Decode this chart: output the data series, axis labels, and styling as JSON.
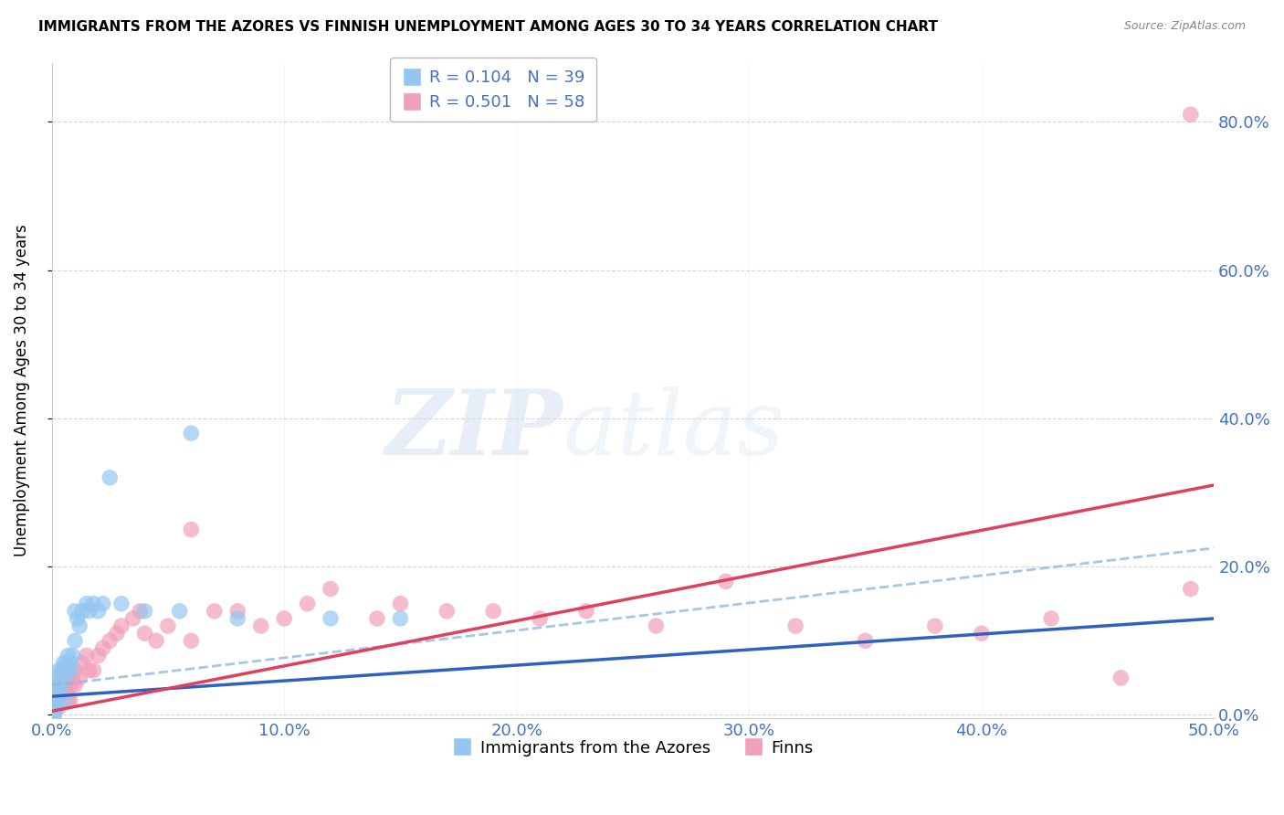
{
  "title": "IMMIGRANTS FROM THE AZORES VS FINNISH UNEMPLOYMENT AMONG AGES 30 TO 34 YEARS CORRELATION CHART",
  "source": "Source: ZipAtlas.com",
  "ylabel": "Unemployment Among Ages 30 to 34 years",
  "xlim": [
    0.0,
    0.5
  ],
  "ylim": [
    -0.005,
    0.88
  ],
  "color_blue": "#93C6F0",
  "color_pink": "#F0A0B8",
  "color_blue_dark": "#3060C0",
  "color_pink_dark": "#E04060",
  "color_blue_dashed": "#90B8E0",
  "color_blue_text": "#4472C4",
  "azores_x": [
    0.001,
    0.001,
    0.001,
    0.002,
    0.002,
    0.002,
    0.003,
    0.003,
    0.003,
    0.004,
    0.004,
    0.005,
    0.005,
    0.005,
    0.006,
    0.006,
    0.007,
    0.008,
    0.008,
    0.009,
    0.01,
    0.01,
    0.011,
    0.012,
    0.013,
    0.015,
    0.016,
    0.018,
    0.02,
    0.022,
    0.025,
    0.03,
    0.04,
    0.055,
    0.06,
    0.08,
    0.12,
    0.15,
    0.001
  ],
  "azores_y": [
    0.005,
    0.01,
    0.0,
    0.02,
    0.03,
    0.01,
    0.03,
    0.05,
    0.06,
    0.04,
    0.06,
    0.02,
    0.05,
    0.07,
    0.06,
    0.07,
    0.08,
    0.07,
    0.06,
    0.08,
    0.1,
    0.14,
    0.13,
    0.12,
    0.14,
    0.15,
    0.14,
    0.15,
    0.14,
    0.15,
    0.32,
    0.15,
    0.14,
    0.14,
    0.38,
    0.13,
    0.13,
    0.13,
    0.0
  ],
  "finns_x": [
    0.001,
    0.001,
    0.002,
    0.002,
    0.003,
    0.003,
    0.004,
    0.004,
    0.005,
    0.005,
    0.006,
    0.006,
    0.007,
    0.008,
    0.008,
    0.009,
    0.01,
    0.01,
    0.012,
    0.013,
    0.015,
    0.016,
    0.018,
    0.02,
    0.022,
    0.025,
    0.028,
    0.03,
    0.035,
    0.038,
    0.04,
    0.045,
    0.05,
    0.06,
    0.07,
    0.08,
    0.09,
    0.1,
    0.11,
    0.12,
    0.14,
    0.15,
    0.17,
    0.19,
    0.21,
    0.23,
    0.26,
    0.29,
    0.32,
    0.35,
    0.38,
    0.4,
    0.43,
    0.46,
    0.49,
    0.003,
    0.06,
    0.49
  ],
  "finns_y": [
    0.01,
    0.02,
    0.03,
    0.02,
    0.04,
    0.01,
    0.03,
    0.05,
    0.04,
    0.06,
    0.03,
    0.04,
    0.02,
    0.04,
    0.02,
    0.05,
    0.04,
    0.06,
    0.05,
    0.07,
    0.08,
    0.06,
    0.06,
    0.08,
    0.09,
    0.1,
    0.11,
    0.12,
    0.13,
    0.14,
    0.11,
    0.1,
    0.12,
    0.25,
    0.14,
    0.14,
    0.12,
    0.13,
    0.15,
    0.17,
    0.13,
    0.15,
    0.14,
    0.14,
    0.13,
    0.14,
    0.12,
    0.18,
    0.12,
    0.1,
    0.12,
    0.11,
    0.13,
    0.05,
    0.17,
    0.03,
    0.1,
    0.81
  ],
  "trendline_az_start": 0.025,
  "trendline_az_end": 0.13,
  "trendline_fi_start": 0.005,
  "trendline_fi_end": 0.31,
  "trendline_dash_start": 0.04,
  "trendline_dash_end": 0.225
}
